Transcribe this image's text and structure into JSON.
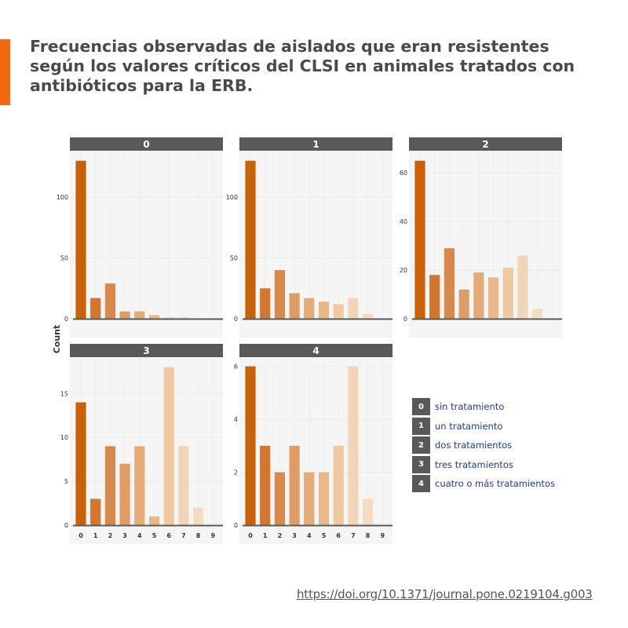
{
  "title": "Frecuencias observadas de aislados que eran resistentes según los valores críticos del CLSI en animales tratados con antibióticos para la ERB.",
  "doi": "https://doi.org/10.1371/journal.pone.0219104.g003",
  "legend": [
    {
      "key": "0",
      "label": "sin tratamiento"
    },
    {
      "key": "1",
      "label": "un tratamiento"
    },
    {
      "key": "2",
      "label": "dos tratamientos"
    },
    {
      "key": "3",
      "label": "tres tratamientos"
    },
    {
      "key": "4",
      "label": "cuatro o más tratamientos"
    }
  ],
  "colors": {
    "accent": "#f26a0f",
    "strip": "#595959",
    "panel_bg": "#f5f5f5",
    "bars": [
      "#c8620a",
      "#d27630",
      "#d88a4e",
      "#df9c66",
      "#e4aa78",
      "#e9b88a",
      "#efc9a1",
      "#f2d5b8",
      "#f4dcc3",
      "#f6e2cd"
    ]
  },
  "chart_data": {
    "type": "bar",
    "ylabel": "Count",
    "x_categories": [
      "0",
      "1",
      "2",
      "3",
      "4",
      "5",
      "6",
      "7",
      "8",
      "9"
    ],
    "panels": [
      {
        "facet": "0",
        "values": [
          130,
          17,
          29,
          6,
          6,
          3,
          1,
          1,
          0,
          0
        ],
        "ylim": [
          0,
          135
        ],
        "yticks": [
          0,
          50,
          100
        ]
      },
      {
        "facet": "1",
        "values": [
          130,
          25,
          40,
          21,
          17,
          14,
          12,
          17,
          4,
          0
        ],
        "ylim": [
          0,
          135
        ],
        "yticks": [
          0,
          50,
          100
        ]
      },
      {
        "facet": "2",
        "values": [
          65,
          18,
          29,
          12,
          19,
          17,
          21,
          26,
          4,
          0
        ],
        "ylim": [
          0,
          67.5
        ],
        "yticks": [
          0,
          20,
          40,
          60
        ]
      },
      {
        "facet": "3",
        "values": [
          14,
          3,
          9,
          7,
          9,
          1,
          18,
          9,
          2,
          0
        ],
        "ylim": [
          0,
          18.7
        ],
        "yticks": [
          0,
          5,
          10,
          15
        ]
      },
      {
        "facet": "4",
        "values": [
          6,
          3,
          2,
          3,
          2,
          2,
          3,
          6,
          1,
          0
        ],
        "ylim": [
          0,
          6.2
        ],
        "yticks": [
          0,
          2,
          4,
          6
        ]
      }
    ]
  }
}
